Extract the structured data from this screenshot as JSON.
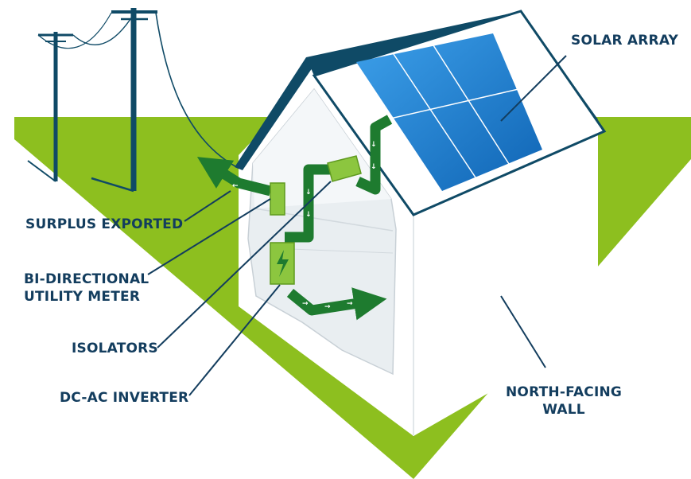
{
  "labels": {
    "solar_array": "SOLAR ARRAY",
    "surplus_exported": "SURPLUS EXPORTED",
    "bi_directional_line1": "BI-DIRECTIONAL",
    "bi_directional_line2": "UTILITY METER",
    "isolators": "ISOLATORS",
    "dc_ac_inverter": "DC-AC INVERTER",
    "north_facing_line1": "NORTH-FACING",
    "north_facing_line2": "WALL"
  },
  "colors": {
    "grass": "#8dbf1f",
    "roof": "#0f4a66",
    "panel": "#1f7fd0",
    "flow": "#1e7b2f",
    "component": "#8cc63f",
    "leader": "#133d5e"
  }
}
